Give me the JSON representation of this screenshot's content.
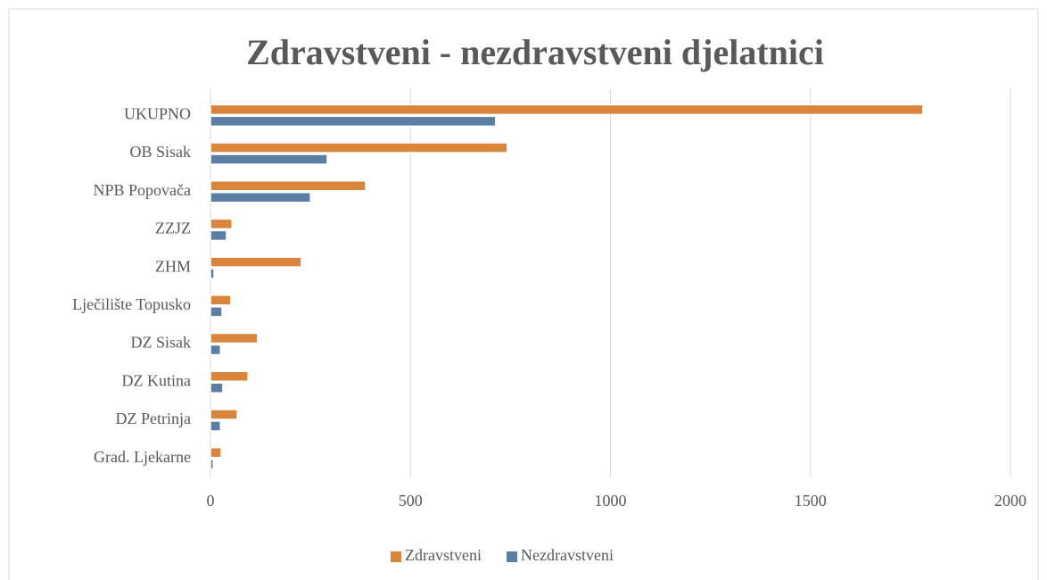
{
  "chart_data": {
    "type": "bar",
    "orientation": "horizontal",
    "title": "Zdravstveni - nezdravstveni djelatnici",
    "categories": [
      "UKUPNO",
      "OB Sisak",
      "NPB Popovača",
      "ZZJZ",
      "ZHM",
      "Lječilište Topusko",
      "DZ Sisak",
      "DZ Kutina",
      "DZ Petrinja",
      "Grad. Ljekarne"
    ],
    "series": [
      {
        "name": "Zdravstveni",
        "color": "#d9853b",
        "values": [
          1781,
          742,
          388,
          54,
          227,
          51,
          118,
          94,
          67,
          27
        ]
      },
      {
        "name": "Nezdravstveni",
        "color": "#5b7fa4",
        "values": [
          713,
          292,
          250,
          40,
          9,
          29,
          25,
          31,
          25,
          7
        ]
      }
    ],
    "xlim": [
      0,
      2000
    ],
    "xticks": [
      0,
      500,
      1000,
      1500,
      2000
    ],
    "grid": true,
    "legend": "bottom"
  }
}
